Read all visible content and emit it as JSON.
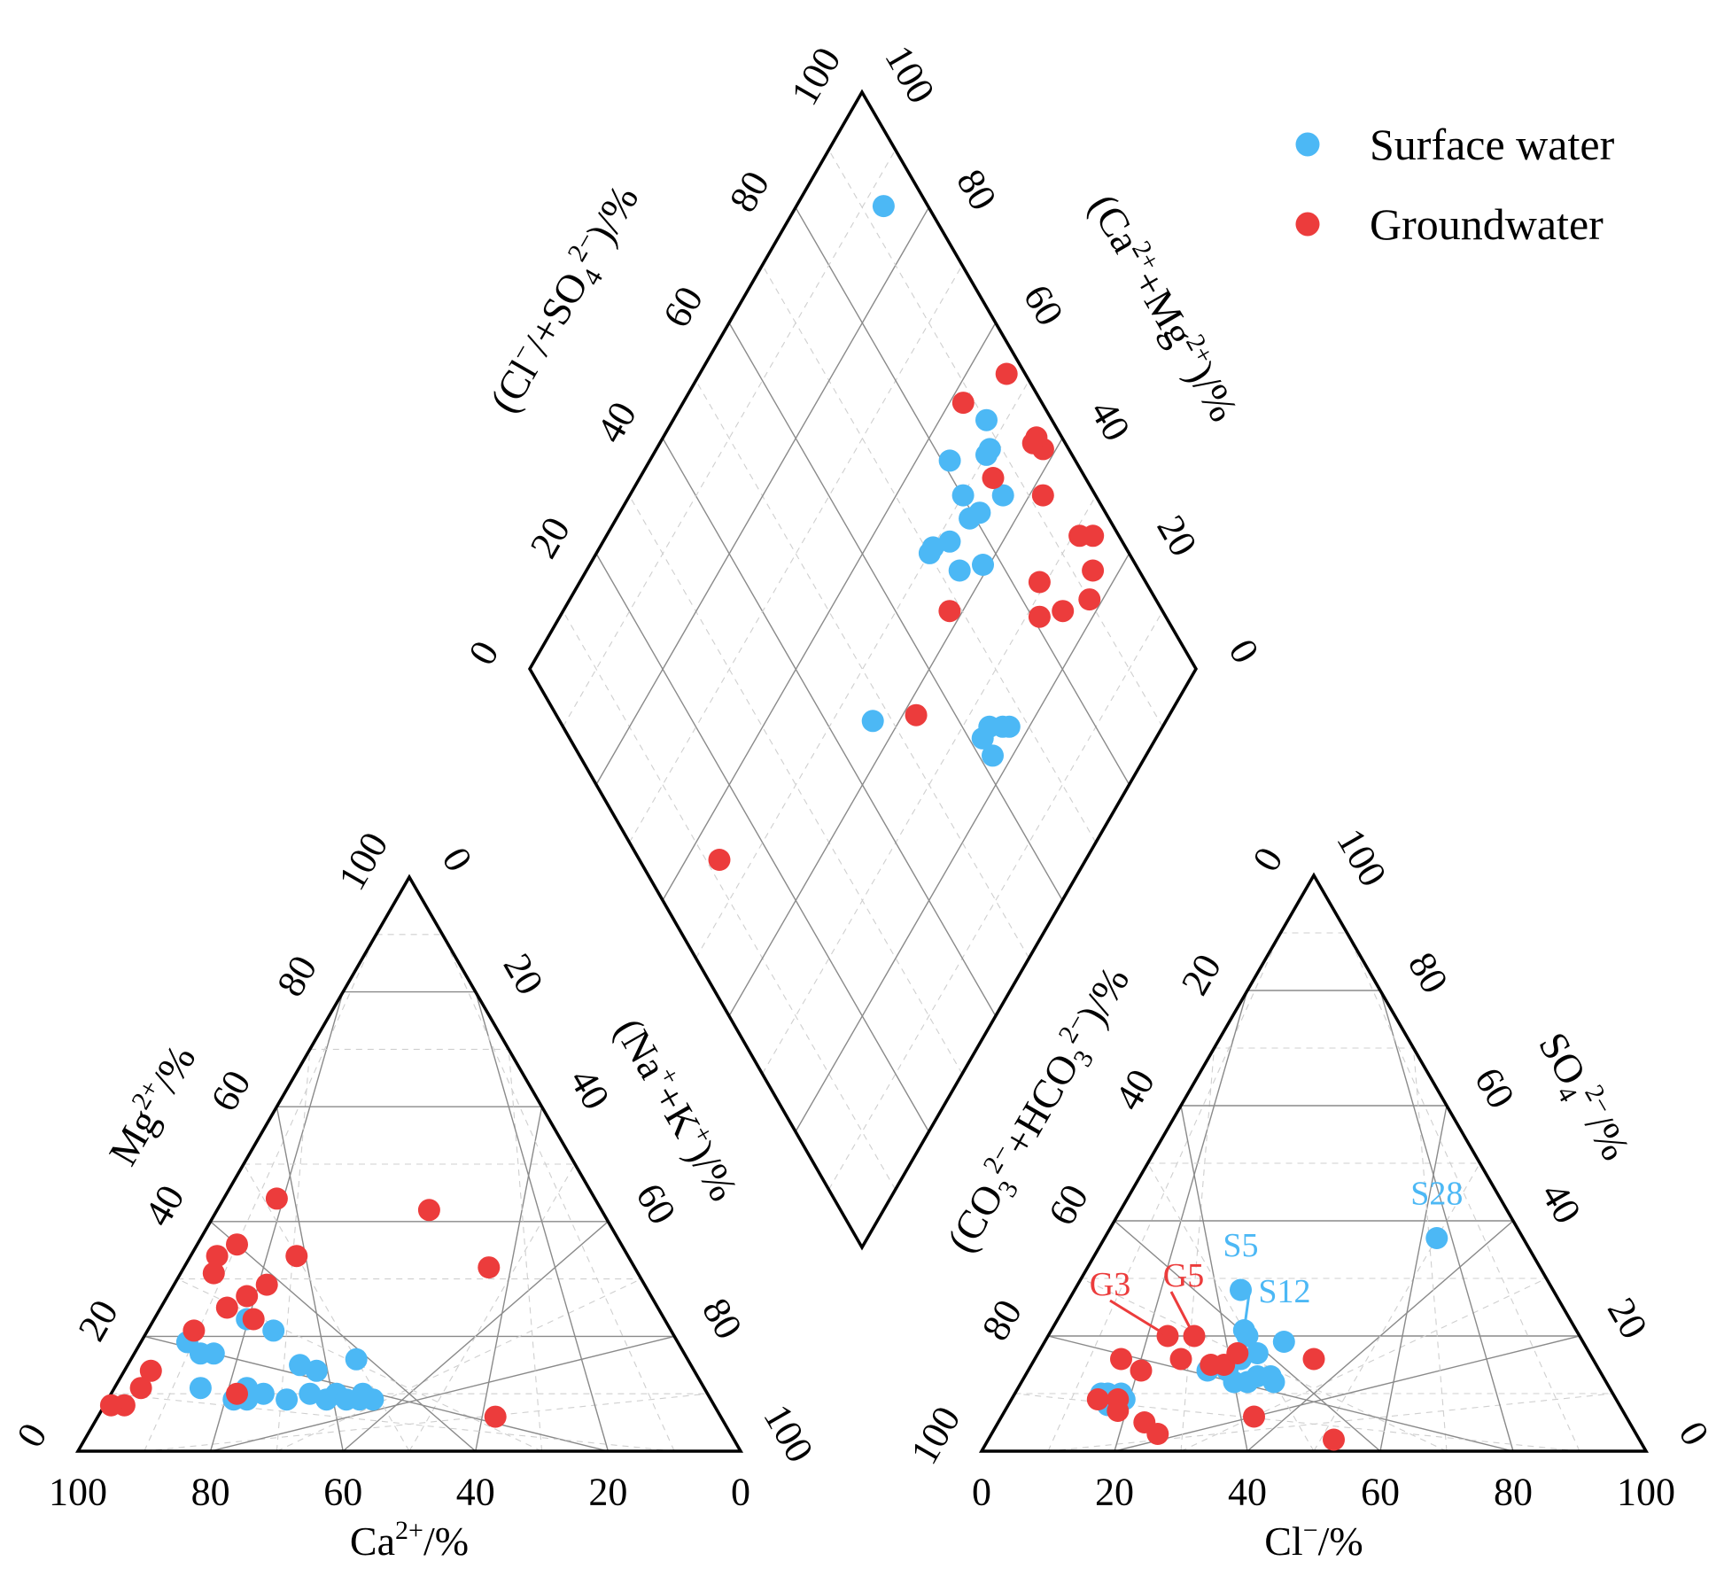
{
  "chart_data": {
    "type": "scatter",
    "subtype": "piper-diagram",
    "legend": {
      "position": "top-right",
      "entries": [
        {
          "name": "Surface water",
          "color": "#4cb8f5"
        },
        {
          "name": "Groundwater",
          "color": "#ec3c3c"
        }
      ]
    },
    "ticks": [
      "0",
      "20",
      "40",
      "60",
      "80",
      "100"
    ],
    "axes": {
      "cation_bottom": {
        "parts": [
          {
            "t": "Ca"
          },
          {
            "t": "2+",
            "sup": true
          },
          {
            "t": "/%"
          }
        ]
      },
      "cation_left": {
        "parts": [
          {
            "t": "Mg"
          },
          {
            "t": "2+",
            "sup": true
          },
          {
            "t": "/%"
          }
        ]
      },
      "cation_right": {
        "parts": [
          {
            "t": "(Na"
          },
          {
            "t": "+",
            "sup": true
          },
          {
            "t": "+K"
          },
          {
            "t": "+",
            "sup": true
          },
          {
            "t": ")/%"
          }
        ]
      },
      "anion_bottom": {
        "parts": [
          {
            "t": "Cl"
          },
          {
            "t": "−",
            "sup": true
          },
          {
            "t": "/%"
          }
        ]
      },
      "anion_left": {
        "parts": [
          {
            "t": "(CO"
          },
          {
            "t": "3",
            "sub": true
          },
          {
            "t": "2−",
            "sup": true
          },
          {
            "t": "+HCO"
          },
          {
            "t": "3",
            "sub": true
          },
          {
            "t": "2−",
            "sup": true
          },
          {
            "t": ")/%"
          }
        ]
      },
      "anion_right": {
        "parts": [
          {
            "t": "SO"
          },
          {
            "t": "4",
            "sub": true
          },
          {
            "t": "2−",
            "sup": true
          },
          {
            "t": "/%"
          }
        ]
      },
      "diamond_left": {
        "parts": [
          {
            "t": "(Cl"
          },
          {
            "t": "−",
            "sup": true
          },
          {
            "t": "/+SO"
          },
          {
            "t": "4",
            "sub": true
          },
          {
            "t": "2−",
            "sup": true
          },
          {
            "t": ")/%"
          }
        ]
      },
      "diamond_right": {
        "parts": [
          {
            "t": "(Ca"
          },
          {
            "t": "2+",
            "sup": true
          },
          {
            "t": "+Mg"
          },
          {
            "t": "2+",
            "sup": true
          },
          {
            "t": ")/%"
          }
        ]
      }
    },
    "series": [
      {
        "name": "Surface water",
        "color": "#4cb8f5",
        "cations": [
          {
            "ca": 74,
            "mg": 19,
            "na": 7
          },
          {
            "ca": 73,
            "mg": 17,
            "na": 10
          },
          {
            "ca": 71,
            "mg": 17,
            "na": 12
          },
          {
            "ca": 76,
            "mg": 11,
            "na": 13
          },
          {
            "ca": 72,
            "mg": 9,
            "na": 19
          },
          {
            "ca": 70,
            "mg": 9,
            "na": 21
          },
          {
            "ca": 69,
            "mg": 11,
            "na": 20
          },
          {
            "ca": 67,
            "mg": 10,
            "na": 23
          },
          {
            "ca": 64,
            "mg": 9,
            "na": 27
          },
          {
            "ca": 63,
            "mg": 23,
            "na": 14
          },
          {
            "ca": 60,
            "mg": 21,
            "na": 19
          },
          {
            "ca": 59,
            "mg": 15,
            "na": 26
          },
          {
            "ca": 57,
            "mg": 14,
            "na": 29
          },
          {
            "ca": 60,
            "mg": 10,
            "na": 30
          },
          {
            "ca": 58,
            "mg": 9,
            "na": 33
          },
          {
            "ca": 56,
            "mg": 10,
            "na": 34
          },
          {
            "ca": 55,
            "mg": 9,
            "na": 36
          },
          {
            "ca": 52,
            "mg": 10,
            "na": 38
          },
          {
            "ca": 53,
            "mg": 9,
            "na": 38
          },
          {
            "ca": 50,
            "mg": 16,
            "na": 34
          },
          {
            "ca": 51,
            "mg": 9,
            "na": 40
          }
        ],
        "anions": [
          {
            "cl": 50,
            "so4": 37,
            "label": "S28"
          },
          {
            "cl": 25,
            "so4": 28,
            "label": "S5"
          },
          {
            "cl": 29,
            "so4": 21,
            "label": "S12"
          },
          {
            "cl": 30,
            "so4": 20
          },
          {
            "cl": 36,
            "so4": 19
          },
          {
            "cl": 31,
            "so4": 16
          },
          {
            "cl": 33,
            "so4": 17
          },
          {
            "cl": 27,
            "so4": 14
          },
          {
            "cl": 30,
            "so4": 14
          },
          {
            "cl": 32,
            "so4": 12
          },
          {
            "cl": 34,
            "so4": 12
          },
          {
            "cl": 35,
            "so4": 13
          },
          {
            "cl": 37,
            "so4": 13
          },
          {
            "cl": 38,
            "so4": 12
          },
          {
            "cl": 13,
            "so4": 10
          },
          {
            "cl": 14,
            "so4": 10
          },
          {
            "cl": 16,
            "so4": 10
          },
          {
            "cl": 15,
            "so4": 8
          },
          {
            "cl": 17,
            "so4": 9
          }
        ]
      },
      {
        "name": "Groundwater",
        "color": "#ec3c3c",
        "cations": [
          {
            "ca": 48,
            "mg": 44,
            "na": 8
          },
          {
            "ca": 26,
            "mg": 42,
            "na": 32
          },
          {
            "ca": 58,
            "mg": 36,
            "na": 6
          },
          {
            "ca": 50,
            "mg": 34,
            "na": 16
          },
          {
            "ca": 22,
            "mg": 32,
            "na": 46
          },
          {
            "ca": 62,
            "mg": 34,
            "na": 4
          },
          {
            "ca": 64,
            "mg": 31,
            "na": 5
          },
          {
            "ca": 57,
            "mg": 29,
            "na": 14
          },
          {
            "ca": 61,
            "mg": 27,
            "na": 12
          },
          {
            "ca": 65,
            "mg": 25,
            "na": 10
          },
          {
            "ca": 62,
            "mg": 23,
            "na": 15
          },
          {
            "ca": 72,
            "mg": 21,
            "na": 7
          },
          {
            "ca": 82,
            "mg": 14,
            "na": 4
          },
          {
            "ca": 71,
            "mg": 10,
            "na": 19
          },
          {
            "ca": 85,
            "mg": 11,
            "na": 4
          },
          {
            "ca": 89,
            "mg": 8,
            "na": 3
          },
          {
            "ca": 91,
            "mg": 8,
            "na": 1
          },
          {
            "ca": 34,
            "mg": 6,
            "na": 60
          }
        ],
        "anions": [
          {
            "cl": 18,
            "so4": 20,
            "label": "G3"
          },
          {
            "cl": 22,
            "so4": 20,
            "label": "G5"
          },
          {
            "cl": 13,
            "so4": 16
          },
          {
            "cl": 17,
            "so4": 14
          },
          {
            "cl": 22,
            "so4": 16
          },
          {
            "cl": 27,
            "so4": 15
          },
          {
            "cl": 29,
            "so4": 15
          },
          {
            "cl": 30,
            "so4": 17
          },
          {
            "cl": 42,
            "so4": 16
          },
          {
            "cl": 13,
            "so4": 9
          },
          {
            "cl": 16,
            "so4": 9
          },
          {
            "cl": 17,
            "so4": 7
          },
          {
            "cl": 22,
            "so4": 5
          },
          {
            "cl": 25,
            "so4": 3
          },
          {
            "cl": 38,
            "so4": 6
          },
          {
            "cl": 52,
            "so4": 2
          }
        ]
      }
    ],
    "diamond": {
      "outlier_points": [
        {
          "series": "Surface water",
          "x": 44,
          "y": 47
        },
        {
          "series": "Groundwater",
          "x": 55,
          "y": 12
        }
      ]
    }
  }
}
